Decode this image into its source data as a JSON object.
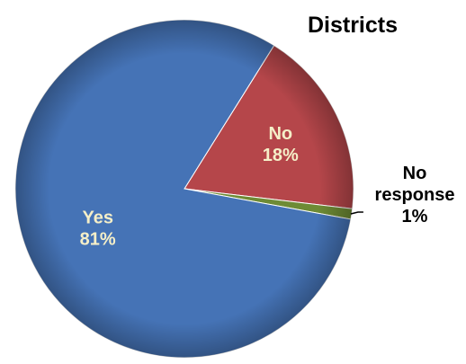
{
  "chart_data": {
    "type": "pie",
    "title": "Districts",
    "start_angle_deg": -58,
    "direction": "clockwise",
    "slices": [
      {
        "label": "No",
        "value": 18,
        "value_label": "18%",
        "color": "#B5464A",
        "label_position": "inside"
      },
      {
        "label": "No response",
        "label_lines": [
          "No",
          "response"
        ],
        "value": 1,
        "value_label": "1%",
        "color": "#6E8B35",
        "label_position": "outside"
      },
      {
        "label": "Yes",
        "value": 81,
        "value_label": "81%",
        "color": "#4573B6",
        "label_position": "inside"
      }
    ],
    "colors": {
      "inside_label": "#F5EFC8",
      "outside_label": "#000000",
      "title": "#000000",
      "leader_line": "#000000"
    }
  }
}
